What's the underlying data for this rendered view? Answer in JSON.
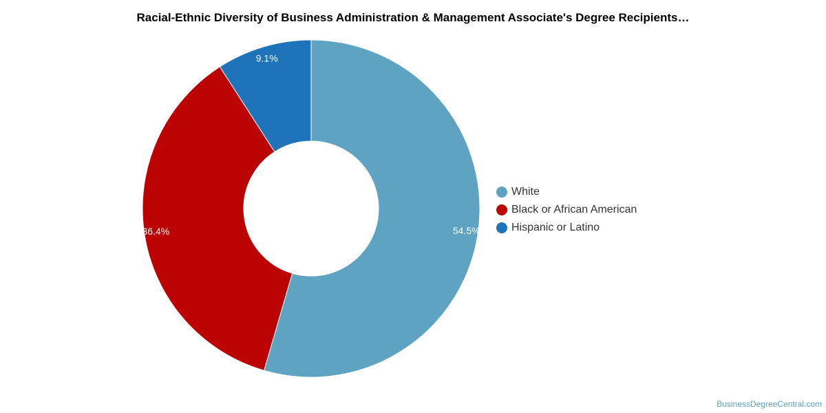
{
  "title": "Racial-Ethnic Diversity of Business Administration & Management Associate's Degree Recipients…",
  "source": "BusinessDegreeCentral.com",
  "chart_data": {
    "type": "pie",
    "subtype": "donut",
    "title": "Racial-Ethnic Diversity of Business Administration & Management Associate's Degree Recipients…",
    "legend_position": "right",
    "slices": [
      {
        "name": "White",
        "value": 54.5,
        "label": "54.5%",
        "color": "#5ea3c1"
      },
      {
        "name": "Black or African American",
        "value": 36.4,
        "label": "36.4%",
        "color": "#bb0303"
      },
      {
        "name": "Hispanic or Latino",
        "value": 9.1,
        "label": "9.1%",
        "color": "#1f74b9"
      }
    ]
  }
}
